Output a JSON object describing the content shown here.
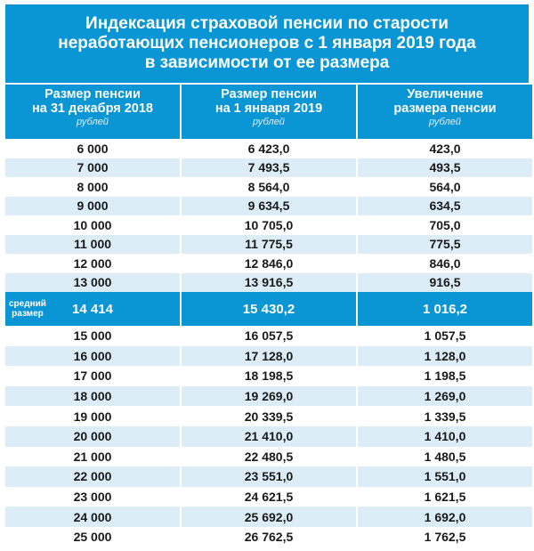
{
  "title": [
    "Индексация страховой пенсии по старости",
    "неработающих пенсионеров с 1 января 2019 года",
    "в зависимости от ее размера"
  ],
  "columns": [
    {
      "line1": "Размер пенсии",
      "line2": "на 31 декабря 2018",
      "unit": "рублей"
    },
    {
      "line1": "Размер пенсии",
      "line2": "на 1 января 2019",
      "unit": "рублей"
    },
    {
      "line1": "Увеличение",
      "line2": "размера пенсии",
      "unit": "рублей"
    }
  ],
  "rows_before": [
    [
      "6 000",
      "6 423,0",
      "423,0"
    ],
    [
      "7 000",
      "7 493,5",
      "493,5"
    ],
    [
      "8 000",
      "8 564,0",
      "564,0"
    ],
    [
      "9 000",
      "9 634,5",
      "634,5"
    ],
    [
      "10 000",
      "10 705,0",
      "705,0"
    ],
    [
      "11 000",
      "11 775,5",
      "775,5"
    ],
    [
      "12 000",
      "12 846,0",
      "846,0"
    ],
    [
      "13 000",
      "13 916,5",
      "916,5"
    ]
  ],
  "average": {
    "label1": "средний",
    "label2": "размер",
    "values": [
      "14 414",
      "15 430,2",
      "1 016,2"
    ]
  },
  "rows_after": [
    [
      "15 000",
      "16 057,5",
      "1 057,5"
    ],
    [
      "16 000",
      "17 128,0",
      "1 128,0"
    ],
    [
      "17 000",
      "18 198,5",
      "1 198,5"
    ],
    [
      "18 000",
      "19 269,0",
      "1 269,0"
    ],
    [
      "19 000",
      "20 339,5",
      "1 339,5"
    ],
    [
      "20 000",
      "21 410,0",
      "1 410,0"
    ],
    [
      "21 000",
      "22 480,5",
      "1 480,5"
    ],
    [
      "22 000",
      "23 551,0",
      "1 551,0"
    ],
    [
      "23 000",
      "24 621,5",
      "1 621,5"
    ],
    [
      "24 000",
      "25 692,0",
      "1 692,0"
    ],
    [
      "25 000",
      "26 762,5",
      "1 762,5"
    ]
  ]
}
